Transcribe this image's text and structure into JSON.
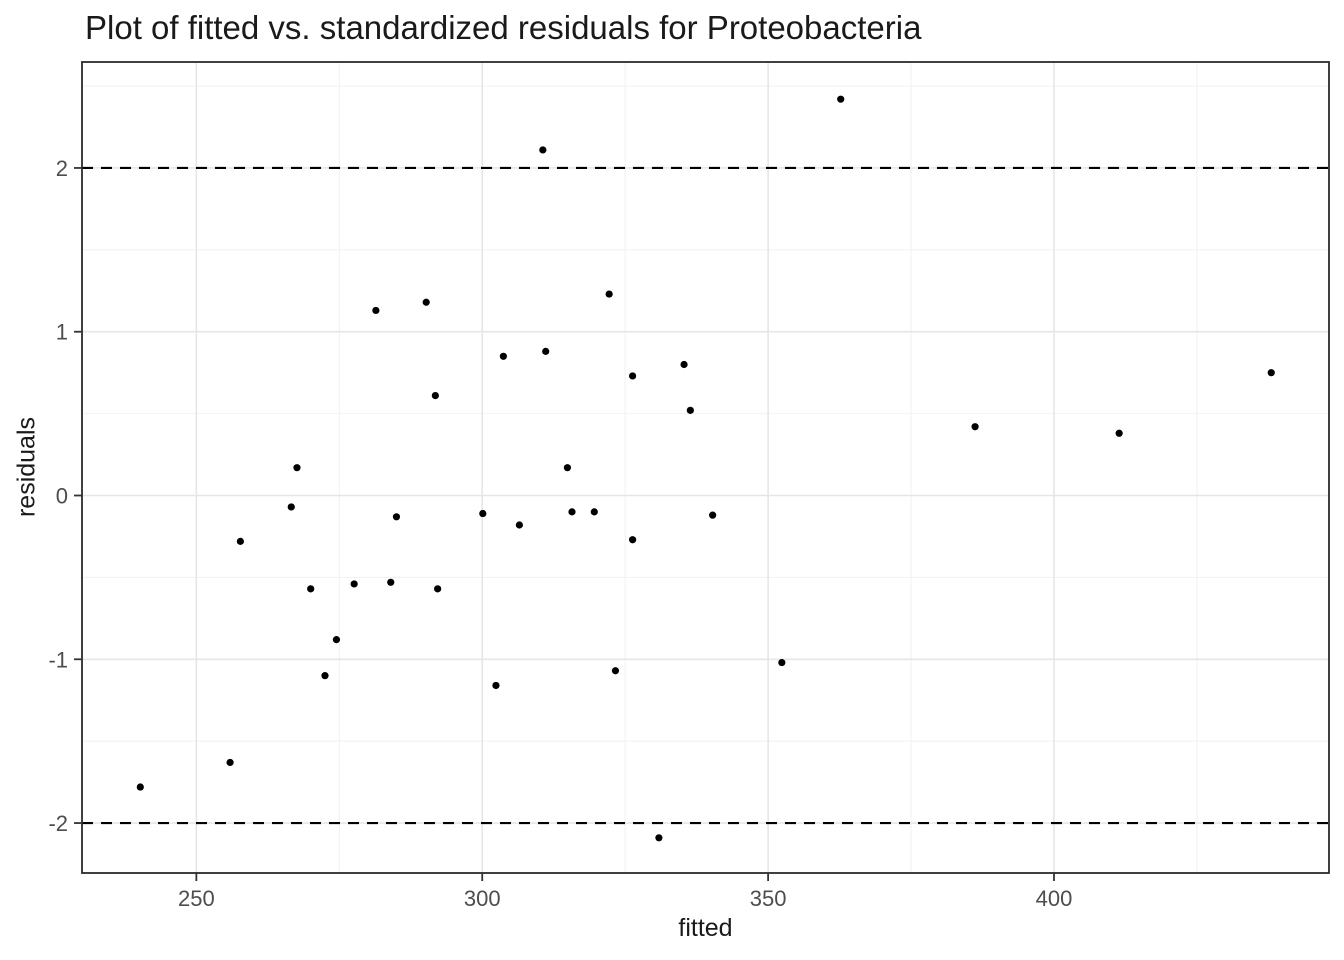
{
  "chart_data": {
    "type": "scatter",
    "title": "Plot of fitted vs. standardized residuals for Proteobacteria",
    "xlabel": "fitted",
    "ylabel": "residuals",
    "xlim": [
      230.0,
      448.1
    ],
    "ylim": [
      -2.305,
      2.647
    ],
    "x_ticks": [
      250,
      300,
      350,
      400
    ],
    "y_ticks": [
      2,
      1,
      0,
      -1,
      -2
    ],
    "x_minor": [
      275,
      325,
      375,
      425
    ],
    "y_minor": [
      2.5,
      1.5,
      0.5,
      -0.5,
      -1.5
    ],
    "hlines": [
      {
        "y": 2,
        "style": "dashed"
      },
      {
        "y": -2,
        "style": "dashed"
      }
    ],
    "grid": true,
    "legend": false,
    "point_radius": 3.6,
    "points": [
      [
        240.2,
        -1.78
      ],
      [
        255.9,
        -1.63
      ],
      [
        257.7,
        -0.28
      ],
      [
        266.6,
        -0.07
      ],
      [
        267.6,
        0.17
      ],
      [
        270.0,
        -0.57
      ],
      [
        272.5,
        -1.1
      ],
      [
        274.5,
        -0.88
      ],
      [
        277.6,
        -0.54
      ],
      [
        281.4,
        1.13
      ],
      [
        284.0,
        -0.53
      ],
      [
        285.0,
        -0.13
      ],
      [
        290.2,
        1.18
      ],
      [
        291.8,
        0.61
      ],
      [
        292.2,
        -0.57
      ],
      [
        300.1,
        -0.11
      ],
      [
        302.4,
        -1.16
      ],
      [
        303.7,
        0.85
      ],
      [
        306.5,
        -0.18
      ],
      [
        310.6,
        2.11
      ],
      [
        311.1,
        0.88
      ],
      [
        314.9,
        0.17
      ],
      [
        315.7,
        -0.1
      ],
      [
        319.6,
        -0.1
      ],
      [
        322.2,
        1.23
      ],
      [
        323.3,
        -1.07
      ],
      [
        326.3,
        0.73
      ],
      [
        326.3,
        -0.27
      ],
      [
        330.9,
        -2.09
      ],
      [
        335.3,
        0.8
      ],
      [
        336.4,
        0.52
      ],
      [
        340.3,
        -0.12
      ],
      [
        352.4,
        -1.02
      ],
      [
        362.7,
        2.42
      ],
      [
        386.2,
        0.42
      ],
      [
        411.4,
        0.38
      ],
      [
        438.0,
        0.75
      ]
    ],
    "colors": {
      "point": "#000000",
      "grid_major": "#e6e6e6",
      "grid_minor": "#f2f2f2",
      "panel_border": "#2b2b2b",
      "tick_mark": "#333333",
      "axis_text": "#4d4d4d",
      "dashed_line": "#000000",
      "background": "#ffffff"
    }
  }
}
